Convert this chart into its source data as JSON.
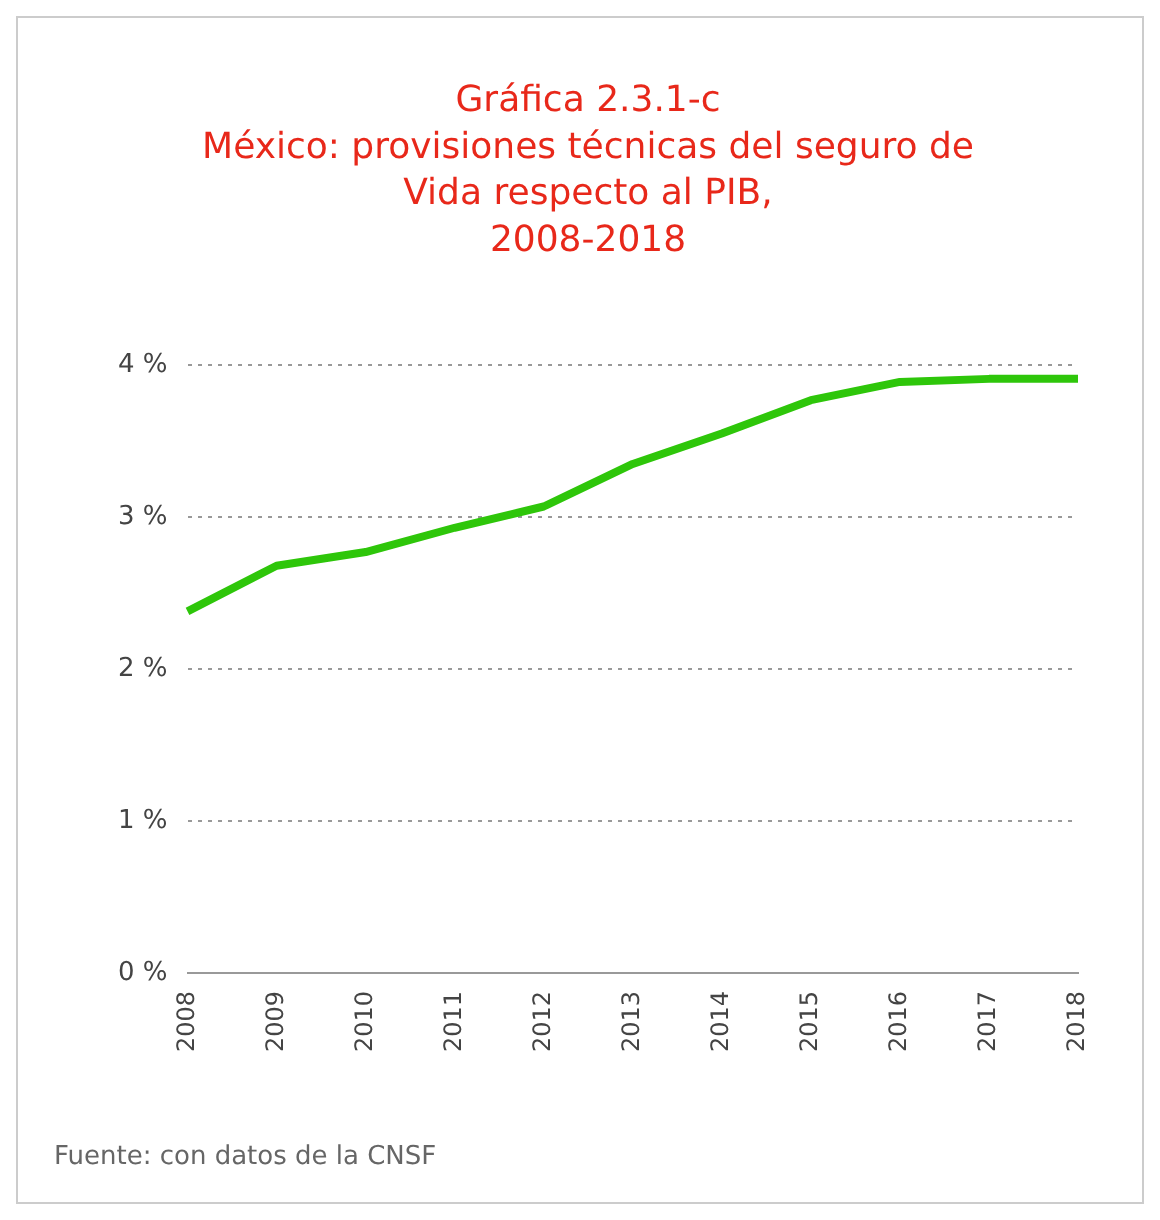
{
  "chart_data": {
    "type": "line",
    "title": "Gráfica 2.3.1-c\nMéxico: provisiones técnicas del seguro de\nVida respecto al PIB,\n2008-2018",
    "categories": [
      "2008",
      "2009",
      "2010",
      "2011",
      "2012",
      "2013",
      "2014",
      "2015",
      "2016",
      "2017",
      "2018"
    ],
    "series": [
      {
        "color": "#2ec60a",
        "values": [
          2.38,
          2.68,
          2.77,
          2.93,
          3.07,
          3.35,
          3.55,
          3.77,
          3.89,
          3.91,
          3.91
        ]
      }
    ],
    "ylim": [
      0,
      4
    ],
    "yticks": [
      {
        "value": 0,
        "label": "0 %"
      },
      {
        "value": 1,
        "label": "1 %"
      },
      {
        "value": 2,
        "label": "2 %"
      },
      {
        "value": 3,
        "label": "3 %"
      },
      {
        "value": 4,
        "label": "4 %"
      }
    ],
    "grid": "y",
    "legend": false,
    "marker": "none",
    "line_style": "solid",
    "annotations": [
      "Fuente: con datos de la CNSF"
    ]
  }
}
